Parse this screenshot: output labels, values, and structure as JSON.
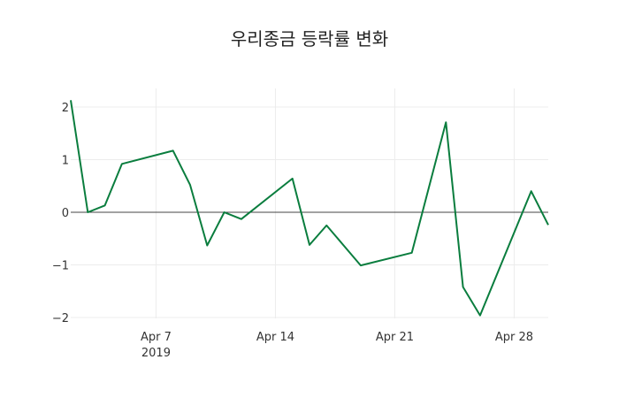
{
  "chart_data": {
    "type": "line",
    "title": "우리종금 등락률 변화",
    "xlabel": "",
    "ylabel": "",
    "x": [
      "2019-04-02",
      "2019-04-03",
      "2019-04-04",
      "2019-04-05",
      "2019-04-08",
      "2019-04-09",
      "2019-04-10",
      "2019-04-11",
      "2019-04-12",
      "2019-04-15",
      "2019-04-16",
      "2019-04-17",
      "2019-04-18",
      "2019-04-19",
      "2019-04-22",
      "2019-04-23",
      "2019-04-24",
      "2019-04-25",
      "2019-04-26",
      "2019-04-29",
      "2019-04-30"
    ],
    "values": [
      2.13,
      0.0,
      0.13,
      0.92,
      1.17,
      0.52,
      -0.63,
      0.0,
      -0.13,
      0.64,
      -0.62,
      -0.25,
      -0.63,
      -1.01,
      -0.77,
      0.47,
      1.71,
      -1.42,
      -1.96,
      0.4,
      -0.24
    ],
    "series_color": "#0a7d3e",
    "x_ticks": [
      {
        "label": "Apr 7",
        "sublabel": "2019",
        "date": "2019-04-07"
      },
      {
        "label": "Apr 14",
        "sublabel": "",
        "date": "2019-04-14"
      },
      {
        "label": "Apr 21",
        "sublabel": "",
        "date": "2019-04-21"
      },
      {
        "label": "Apr 28",
        "sublabel": "",
        "date": "2019-04-28"
      }
    ],
    "y_ticks": [
      2,
      1,
      0,
      -1,
      -2
    ],
    "y_tick_labels": [
      "2",
      "1",
      "0",
      "−1",
      "−2"
    ],
    "ylim": [
      -2.05,
      2.2
    ],
    "grid": true,
    "zero_line": true,
    "legend": null
  }
}
